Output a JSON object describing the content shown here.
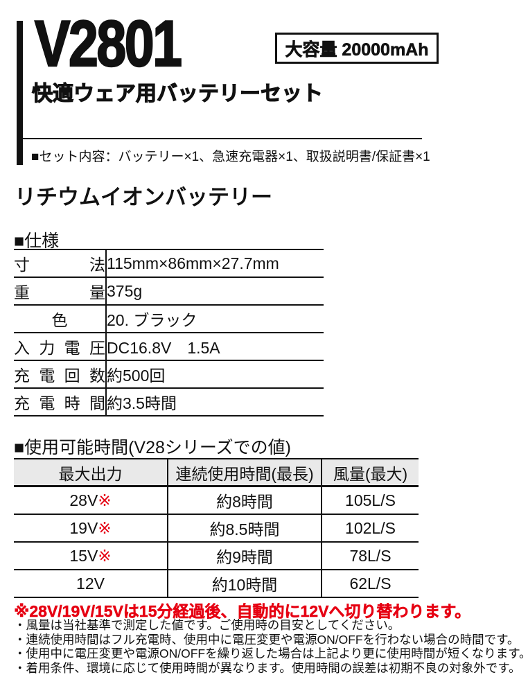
{
  "header": {
    "model": "V2801",
    "capacity_badge": "大容量 20000mAh",
    "subtitle": "快適ウェア用バッテリーセット",
    "set_contents": "■セット内容：バッテリー×1、急速充電器×1、取扱説明書/保証書×1"
  },
  "battery_section": {
    "title": "リチウムイオンバッテリー"
  },
  "spec": {
    "heading": "■仕様",
    "rows": [
      {
        "label": "寸　法",
        "value": "115mm×86mm×27.7mm"
      },
      {
        "label": "重　量",
        "value": "375g"
      },
      {
        "label": "色",
        "value": "20. ブラック"
      },
      {
        "label": "入力電圧",
        "value": "DC16.8V　1.5A"
      },
      {
        "label": "充電回数",
        "value": "約500回"
      },
      {
        "label": "充電時間",
        "value": "約3.5時間"
      }
    ]
  },
  "usage": {
    "heading": "■使用可能時間(V28シリーズでの値)",
    "columns": [
      "最大出力",
      "連続使用時間(最長)",
      "風量(最大)"
    ],
    "rows": [
      {
        "output": "28V",
        "mark": "※",
        "duration": "約8時間",
        "airflow": "105L/S"
      },
      {
        "output": "19V",
        "mark": "※",
        "duration": "約8.5時間",
        "airflow": "102L/S"
      },
      {
        "output": "15V",
        "mark": "※",
        "duration": "約9時間",
        "airflow": "78L/S"
      },
      {
        "output": "12V",
        "mark": "",
        "duration": "約10時間",
        "airflow": "62L/S"
      }
    ],
    "note_red": "※28V/19V/15Vは15分経過後、自動的に12Vへ切り替わります。"
  },
  "footnotes": [
    "・風量は当社基準で測定した値です。ご使用時の目安としてください。",
    "・連続使用時間はフル充電時、使用中に電圧変更や電源ON/OFFを行わない場合の時間です。",
    "・使用中に電圧変更や電源ON/OFFを繰り返した場合は上記より更に使用時間が短くなります。",
    "・着用条件、環境に応じて使用時間が異なります。使用時間の誤差は初期不良の対象外です。"
  ],
  "colors": {
    "ink": "#111111",
    "accent_red": "#e60012",
    "table_header_bg": "#e9e9e9"
  }
}
